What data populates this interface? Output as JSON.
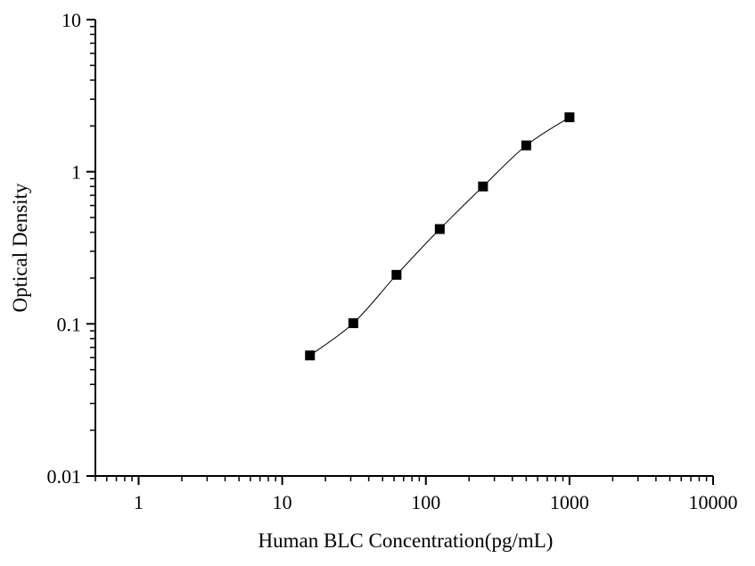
{
  "chart_data": {
    "type": "scatter",
    "xlabel": "Human BLC Concentration(pg/mL)",
    "ylabel": "Optical Density",
    "xscale": "log",
    "yscale": "log",
    "xlim": [
      0.5,
      10000
    ],
    "ylim": [
      0.01,
      10
    ],
    "x_ticks": [
      1,
      10,
      100,
      1000,
      10000
    ],
    "x_tick_labels": [
      "1",
      "10",
      "100",
      "1000",
      "10000"
    ],
    "y_ticks": [
      0.01,
      0.1,
      1,
      10
    ],
    "y_tick_labels": [
      "0.01",
      "0.1",
      "1",
      "10"
    ],
    "grid": false,
    "marker": "square",
    "line": "smooth",
    "points": [
      {
        "x": 15.6,
        "y": 0.062
      },
      {
        "x": 31.25,
        "y": 0.101
      },
      {
        "x": 62.5,
        "y": 0.21
      },
      {
        "x": 125,
        "y": 0.42
      },
      {
        "x": 250,
        "y": 0.8
      },
      {
        "x": 500,
        "y": 1.49
      },
      {
        "x": 1000,
        "y": 2.28
      }
    ]
  }
}
